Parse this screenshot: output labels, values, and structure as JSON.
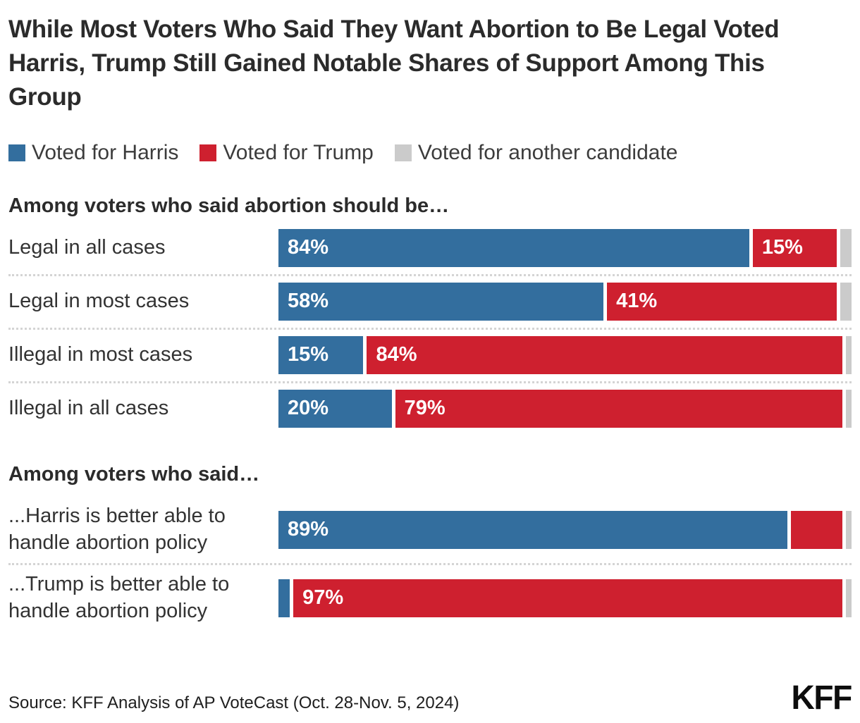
{
  "title": "While Most Voters Who Said They Want Abortion to Be Legal Voted Harris, Trump Still Gained Notable Shares of Support Among This Group",
  "colors": {
    "harris": "#336e9e",
    "trump": "#ce202f",
    "other": "#cbcbcb"
  },
  "legend": [
    {
      "label": "Voted for Harris"
    },
    {
      "label": "Voted for Trump"
    },
    {
      "label": "Voted for another candidate"
    }
  ],
  "chart_data": {
    "type": "bar",
    "orientation": "horizontal",
    "stacked": true,
    "unit": "percent",
    "xlim": [
      0,
      100
    ],
    "series_names": [
      "Voted for Harris",
      "Voted for Trump",
      "Voted for another candidate"
    ],
    "sections": [
      {
        "heading": "Among voters who said abortion should be…",
        "rows": [
          {
            "label": "Legal in all cases",
            "harris": 84,
            "harris_label": "84%",
            "trump": 15,
            "trump_label": "15%",
            "other": 2
          },
          {
            "label": "Legal in most cases",
            "harris": 58,
            "harris_label": "58%",
            "trump": 41,
            "trump_label": "41%",
            "other": 2
          },
          {
            "label": "Illegal in most cases",
            "harris": 15,
            "harris_label": "15%",
            "trump": 84,
            "trump_label": "84%",
            "other": 1
          },
          {
            "label": "Illegal in all cases",
            "harris": 20,
            "harris_label": "20%",
            "trump": 79,
            "trump_label": "79%",
            "other": 1
          }
        ]
      },
      {
        "heading": "Among voters who said…",
        "rows": [
          {
            "label": "...Harris is better able to handle abortion policy",
            "harris": 89,
            "harris_label": "89%",
            "trump": 9,
            "trump_label": "",
            "other": 1
          },
          {
            "label": "...Trump is better able to handle abortion policy",
            "harris": 2,
            "harris_label": "",
            "trump": 97,
            "trump_label": "97%",
            "other": 1
          }
        ]
      }
    ]
  },
  "source": "Source: KFF Analysis of AP VoteCast (Oct. 28-Nov. 5, 2024)",
  "logo": "KFF"
}
